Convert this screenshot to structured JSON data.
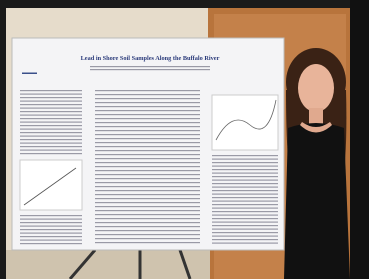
{
  "poster": {
    "title": "Lead in Shore Soil Samples Along the Buffalo River"
  }
}
